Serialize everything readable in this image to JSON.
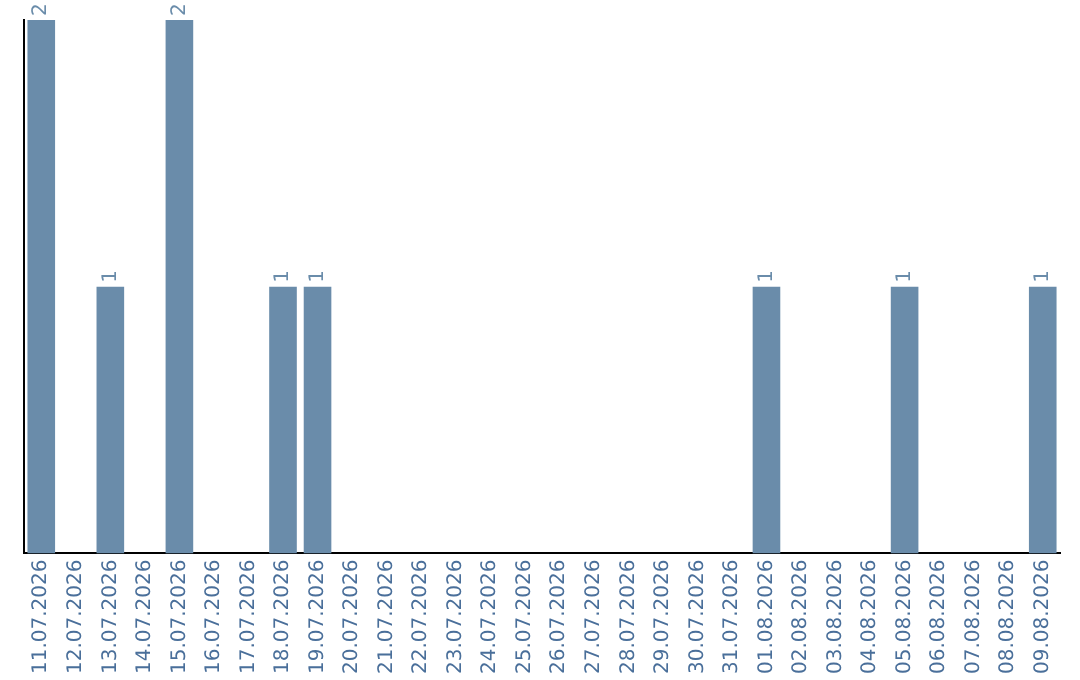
{
  "chart_data": {
    "type": "bar",
    "categories": [
      "11.07.2026",
      "12.07.2026",
      "13.07.2026",
      "14.07.2026",
      "15.07.2026",
      "16.07.2026",
      "17.07.2026",
      "18.07.2026",
      "19.07.2026",
      "20.07.2026",
      "21.07.2026",
      "22.07.2026",
      "23.07.2026",
      "24.07.2026",
      "25.07.2026",
      "26.07.2026",
      "27.07.2026",
      "28.07.2026",
      "29.07.2026",
      "30.07.2026",
      "31.07.2026",
      "01.08.2026",
      "02.08.2026",
      "03.08.2026",
      "04.08.2026",
      "05.08.2026",
      "06.08.2026",
      "07.08.2026",
      "08.08.2026",
      "09.08.2026"
    ],
    "values": [
      2,
      0,
      1,
      0,
      2,
      0,
      0,
      1,
      1,
      0,
      0,
      0,
      0,
      0,
      0,
      0,
      0,
      0,
      0,
      0,
      0,
      1,
      0,
      0,
      0,
      1,
      0,
      0,
      0,
      1
    ],
    "value_labels": [
      "2",
      null,
      "1",
      null,
      "2",
      null,
      null,
      "1",
      "1",
      null,
      null,
      null,
      null,
      null,
      null,
      null,
      null,
      null,
      null,
      null,
      null,
      "1",
      null,
      null,
      null,
      "1",
      null,
      null,
      null,
      "1"
    ],
    "color": "#6a8caa",
    "grid": false,
    "legend": false,
    "tick_labels": "x"
  }
}
